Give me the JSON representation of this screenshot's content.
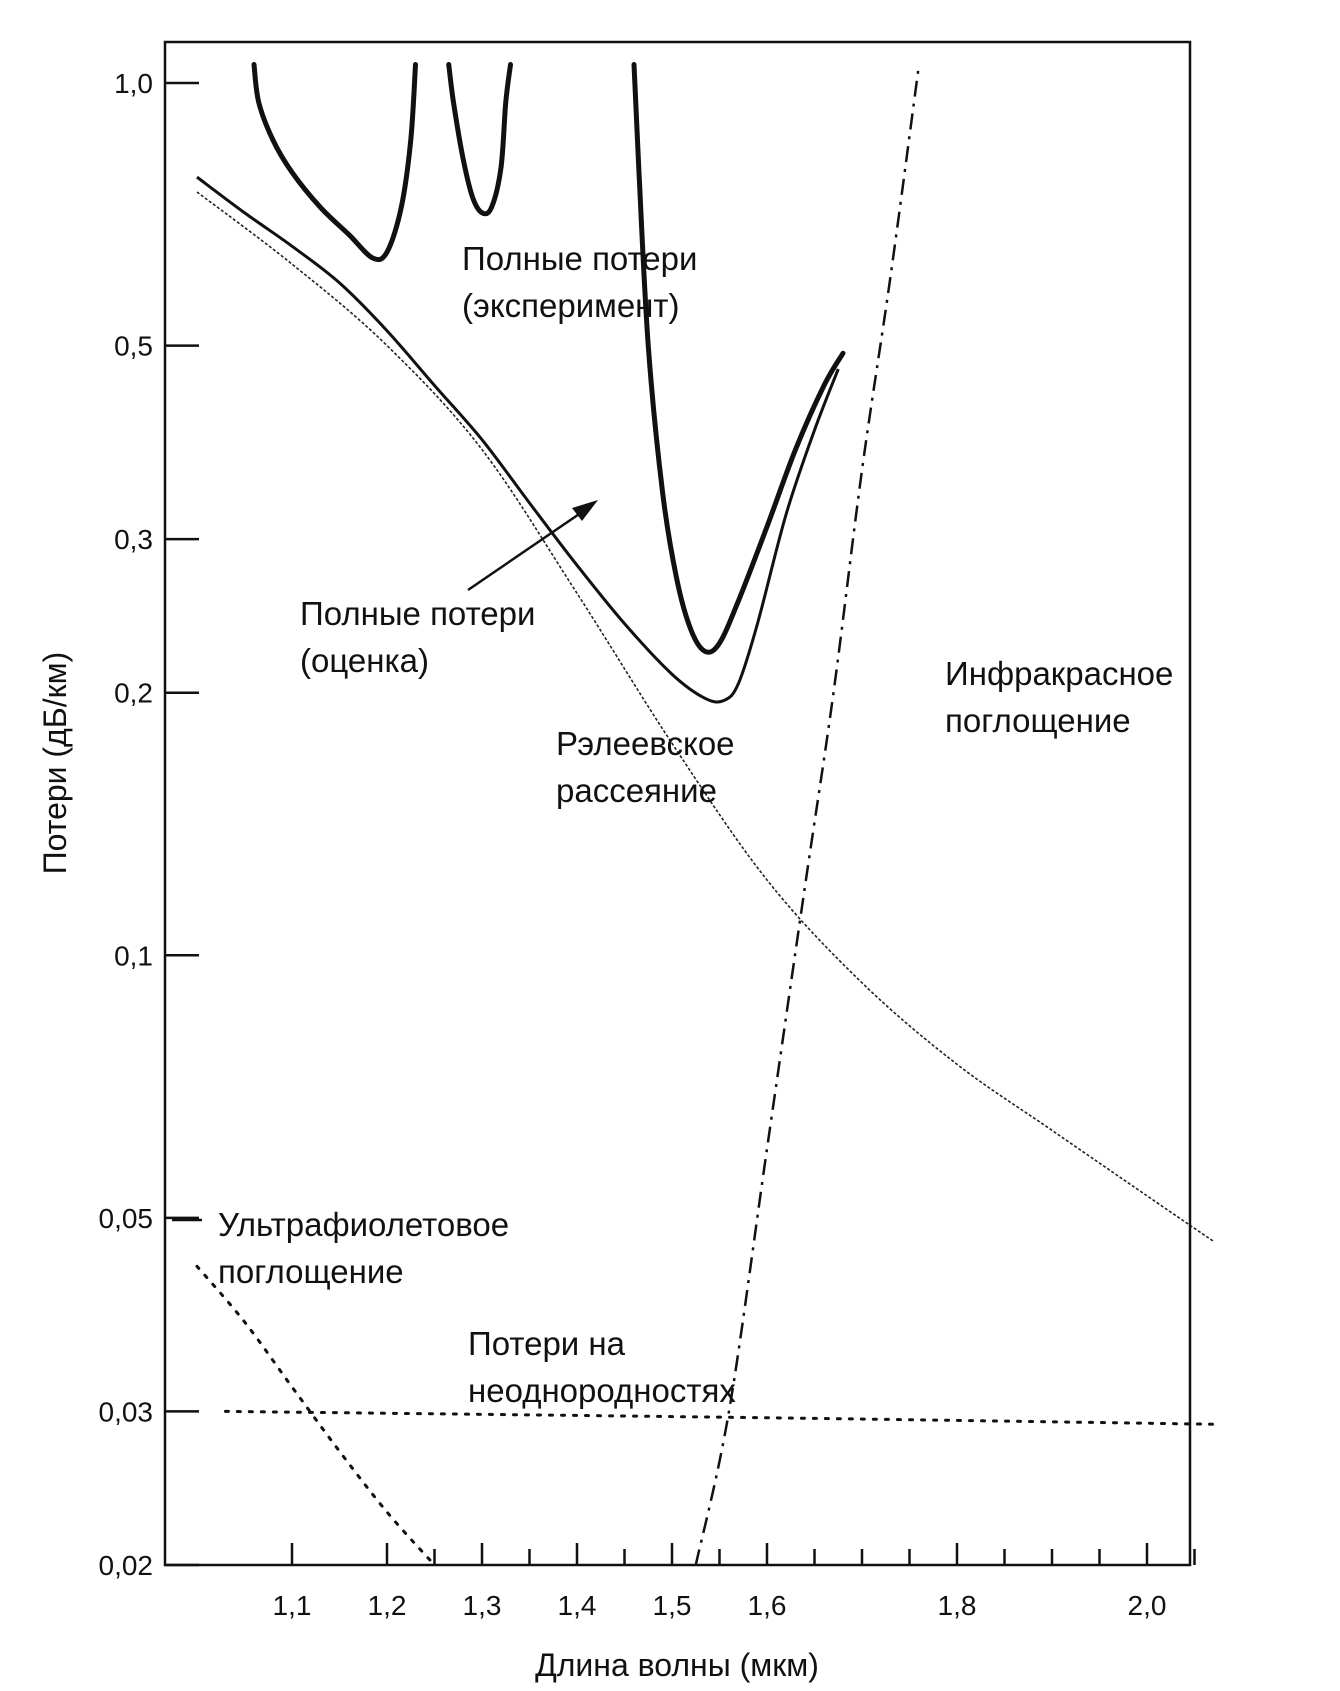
{
  "chart_data": {
    "type": "line",
    "xlabel": "Длина волны (мкм)",
    "ylabel": "Потери (дБ/км)",
    "xlim": [
      1.0,
      2.1
    ],
    "ylim": [
      0.02,
      1.05
    ],
    "y_scale": "log",
    "x_ticks": [
      {
        "value": 1.1,
        "label": "1,1"
      },
      {
        "value": 1.2,
        "label": "1,2"
      },
      {
        "value": 1.3,
        "label": "1,3"
      },
      {
        "value": 1.4,
        "label": "1,4"
      },
      {
        "value": 1.5,
        "label": "1,5"
      },
      {
        "value": 1.6,
        "label": "1,6"
      },
      {
        "value": 1.8,
        "label": "1,8"
      },
      {
        "value": 2.0,
        "label": "2,0"
      }
    ],
    "x_minor_ticks": [
      1.25,
      1.35,
      1.45,
      1.55,
      1.65,
      1.7,
      1.75,
      1.85,
      1.9,
      1.95,
      2.05
    ],
    "y_ticks": [
      {
        "value": 1.0,
        "label": "1,0"
      },
      {
        "value": 0.5,
        "label": "0,5"
      },
      {
        "value": 0.3,
        "label": "0,3"
      },
      {
        "value": 0.2,
        "label": "0,2"
      },
      {
        "value": 0.1,
        "label": "0,1"
      },
      {
        "value": 0.05,
        "label": "0,05"
      },
      {
        "value": 0.03,
        "label": "0,03"
      },
      {
        "value": 0.02,
        "label": "0,02"
      }
    ],
    "series": [
      {
        "name": "Полные потери (эксперимент)",
        "name_lines": [
          "Полные потери",
          "(эксперимент)"
        ],
        "style": "solid-thick",
        "segments": [
          [
            [
              1.06,
              1.05
            ],
            [
              1.065,
              0.95
            ],
            [
              1.08,
              0.86
            ],
            [
              1.1,
              0.79
            ],
            [
              1.13,
              0.72
            ],
            [
              1.16,
              0.67
            ],
            [
              1.185,
              0.63
            ],
            [
              1.2,
              0.64
            ],
            [
              1.215,
              0.72
            ],
            [
              1.225,
              0.86
            ],
            [
              1.23,
              1.05
            ]
          ],
          [
            [
              1.265,
              1.05
            ],
            [
              1.27,
              0.95
            ],
            [
              1.28,
              0.82
            ],
            [
              1.29,
              0.74
            ],
            [
              1.3,
              0.71
            ],
            [
              1.31,
              0.72
            ],
            [
              1.32,
              0.8
            ],
            [
              1.325,
              0.95
            ],
            [
              1.33,
              1.05
            ]
          ],
          [
            [
              1.46,
              1.05
            ],
            [
              1.465,
              0.8
            ],
            [
              1.475,
              0.5
            ],
            [
              1.49,
              0.34
            ],
            [
              1.505,
              0.27
            ],
            [
              1.52,
              0.236
            ],
            [
              1.535,
              0.223
            ],
            [
              1.55,
              0.228
            ],
            [
              1.57,
              0.255
            ],
            [
              1.6,
              0.31
            ],
            [
              1.63,
              0.38
            ],
            [
              1.66,
              0.45
            ],
            [
              1.68,
              0.49
            ]
          ]
        ]
      },
      {
        "name": "Полные потери (оценка)",
        "name_lines": [
          "Полные потери",
          "(оценка)"
        ],
        "style": "solid",
        "points": [
          [
            1.0,
            0.78
          ],
          [
            1.05,
            0.71
          ],
          [
            1.1,
            0.65
          ],
          [
            1.15,
            0.59
          ],
          [
            1.2,
            0.52
          ],
          [
            1.25,
            0.45
          ],
          [
            1.3,
            0.39
          ],
          [
            1.35,
            0.33
          ],
          [
            1.4,
            0.28
          ],
          [
            1.45,
            0.24
          ],
          [
            1.5,
            0.21
          ],
          [
            1.535,
            0.197
          ],
          [
            1.555,
            0.196
          ],
          [
            1.57,
            0.205
          ],
          [
            1.59,
            0.24
          ],
          [
            1.62,
            0.32
          ],
          [
            1.65,
            0.4
          ],
          [
            1.675,
            0.47
          ]
        ]
      },
      {
        "name": "Рэлеевское рассеяние",
        "name_lines": [
          "Рэлеевское",
          "рассеяние"
        ],
        "style": "thin",
        "points": [
          [
            1.0,
            0.75
          ],
          [
            1.1,
            0.62
          ],
          [
            1.2,
            0.5
          ],
          [
            1.3,
            0.38
          ],
          [
            1.4,
            0.26
          ],
          [
            1.5,
            0.175
          ],
          [
            1.6,
            0.122
          ],
          [
            1.7,
            0.093
          ],
          [
            1.8,
            0.075
          ],
          [
            1.9,
            0.063
          ],
          [
            2.0,
            0.053
          ],
          [
            2.07,
            0.047
          ]
        ]
      },
      {
        "name": "Инфракрасное поглощение",
        "name_lines": [
          "Инфракрасное",
          "поглощение"
        ],
        "style": "dash-dot",
        "points": [
          [
            1.525,
            0.02
          ],
          [
            1.56,
            0.03
          ],
          [
            1.6,
            0.06
          ],
          [
            1.64,
            0.12
          ],
          [
            1.67,
            0.2
          ],
          [
            1.7,
            0.36
          ],
          [
            1.73,
            0.6
          ],
          [
            1.76,
            1.05
          ]
        ]
      },
      {
        "name": "Ультрафиолетовое поглощение",
        "name_lines": [
          "Ультрафиолетовое",
          "поглощение"
        ],
        "style": "dotted",
        "points": [
          [
            1.0,
            0.044
          ],
          [
            1.05,
            0.038
          ],
          [
            1.1,
            0.032
          ],
          [
            1.15,
            0.027
          ],
          [
            1.2,
            0.023
          ],
          [
            1.25,
            0.02
          ]
        ]
      },
      {
        "name": "Потери на неоднородностях",
        "name_lines": [
          "Потери на",
          "неоднородностях"
        ],
        "style": "dotted",
        "points": [
          [
            1.03,
            0.03
          ],
          [
            1.6,
            0.0295
          ],
          [
            2.07,
            0.029
          ]
        ]
      }
    ]
  }
}
